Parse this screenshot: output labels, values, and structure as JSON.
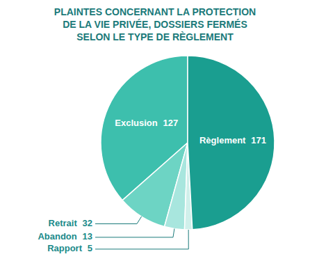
{
  "chart_data": {
    "type": "pie",
    "title": [
      "PLAINTES CONCERNANT LA PROTECTION",
      "DE LA VIE PRIVÉE, DOSSIERS FERMÉS",
      "SELON LE TYPE DE RÈGLEMENT"
    ],
    "categories": [
      "Exclusion",
      "Retrait",
      "Abandon",
      "Rapport",
      "Règlement"
    ],
    "values": [
      127,
      32,
      13,
      5,
      171
    ],
    "colors": [
      "#3dbfad",
      "#6dd4c4",
      "#a8e6de",
      "#d0f0eb",
      "#1a9e90"
    ],
    "data_labels": true
  }
}
